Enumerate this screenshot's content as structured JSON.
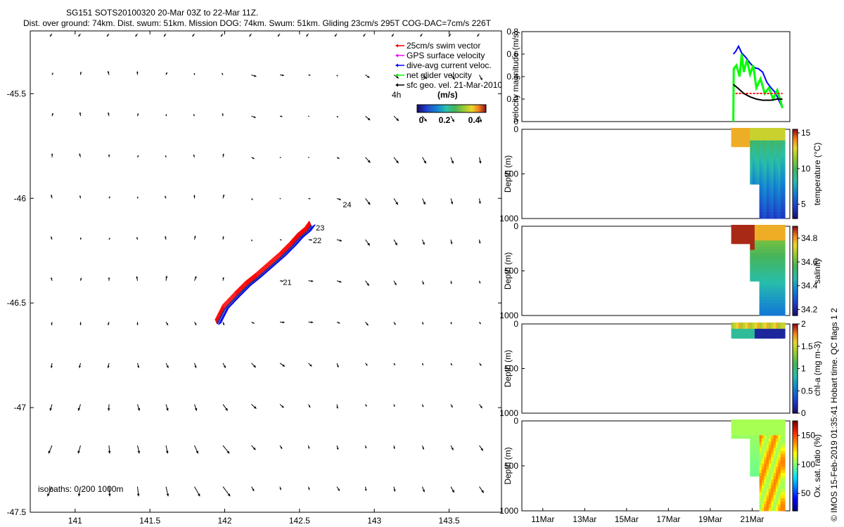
{
  "header": {
    "title": "SG151 SOTS20100320 20-Mar 03Z to 22-Mar 11Z.",
    "subtitle": "Dist. over ground: 74km. Dist. swum: 51km. Mission DOG: 74km. Swum: 51km. Gliding 23cm/s 295T COG-DAC=7cm/s 226T"
  },
  "side_text": "© IMOS 15-Feb-2019 01:35:41 Hobart time. QC flags 1  2",
  "colors": {
    "swim_vector": "#ff0000",
    "gps_surface_velocity": "#ff00ff",
    "dive_avg_current": "#0000ff",
    "net_glider_velocity": "#00ff00",
    "sfc_geo_vel": "#000000"
  },
  "chart_data": [
    {
      "type": "scatter",
      "name": "map",
      "legend": {
        "position": "top-right",
        "items": [
          "25cm/s swim vector",
          "GPS surface velocity",
          "dive-avg current veloc.",
          "net glider velocity",
          "sfc geo. vel. 21-Mar-2010"
        ],
        "interval_label": "4h",
        "colorbar_label": "(m/s)",
        "colorbar_ticks": [
          "0",
          "0.2",
          "0.4"
        ]
      },
      "xlim": [
        140.7,
        143.85
      ],
      "ylim": [
        -47.5,
        -45.2
      ],
      "xticks": [
        "141",
        "141.5",
        "142",
        "142.5",
        "143",
        "143.5"
      ],
      "yticks": [
        "-45.5",
        "-46",
        "-46.5",
        "-47",
        "-47.5"
      ],
      "isobaths_label": "isobaths: 0   200  1000m",
      "track": {
        "lon": [
          141.95,
          142.0,
          142.08,
          142.15,
          142.22,
          142.3,
          142.38,
          142.45,
          142.5,
          142.55,
          142.58
        ],
        "lat": [
          -46.6,
          -46.53,
          -46.47,
          -46.42,
          -46.38,
          -46.33,
          -46.28,
          -46.23,
          -46.19,
          -46.16,
          -46.13
        ]
      },
      "day_labels": [
        {
          "text": "21",
          "lon": 142.38,
          "lat": -46.4
        },
        {
          "text": "22",
          "lon": 142.58,
          "lat": -46.2
        },
        {
          "text": "23",
          "lon": 142.6,
          "lat": -46.14
        },
        {
          "text": "24",
          "lon": 142.78,
          "lat": -46.03
        }
      ]
    },
    {
      "type": "line",
      "name": "velocity",
      "ylabel": "velocity magnitude (m/s)",
      "ylim": [
        0,
        0.8
      ],
      "yticks": [
        "0",
        "0.2",
        "0.4",
        "0.6",
        "0.8"
      ],
      "series": [
        {
          "color": "#0000ff",
          "t": [
            20.1,
            20.2,
            20.35,
            20.5,
            20.7,
            20.9,
            21.1,
            21.3,
            21.5,
            21.7,
            21.9,
            22.1,
            22.3,
            22.45
          ],
          "v": [
            0.6,
            0.62,
            0.67,
            0.61,
            0.57,
            0.52,
            0.48,
            0.47,
            0.44,
            0.35,
            0.3,
            0.26,
            0.18,
            0.12
          ]
        },
        {
          "color": "#00ff00",
          "t": [
            20.1,
            20.12,
            20.25,
            20.4,
            20.5,
            20.6,
            20.75,
            20.9,
            21.05,
            21.2,
            21.4,
            21.6,
            21.8,
            22.0,
            22.2,
            22.45
          ],
          "v": [
            0.0,
            0.47,
            0.5,
            0.4,
            0.6,
            0.44,
            0.55,
            0.42,
            0.5,
            0.3,
            0.38,
            0.25,
            0.3,
            0.2,
            0.28,
            0.12
          ]
        },
        {
          "color": "#ff0000",
          "t": [
            20.2,
            22.45
          ],
          "v": [
            0.25,
            0.25
          ]
        },
        {
          "color": "#000000",
          "t": [
            20.1,
            20.3,
            20.6,
            20.9,
            21.2,
            21.5,
            21.9,
            22.2,
            22.45
          ],
          "v": [
            0.33,
            0.3,
            0.25,
            0.22,
            0.2,
            0.19,
            0.19,
            0.2,
            0.2
          ]
        }
      ]
    },
    {
      "type": "heatmap",
      "name": "temperature",
      "ylabel": "Depth (m)",
      "cblabel": "temperature (°C)",
      "ylim": [
        0,
        1000
      ],
      "yticks": [
        "0",
        "500",
        "1000"
      ],
      "cbticks": [
        "5",
        "10",
        "15"
      ],
      "clim": [
        3,
        15.5
      ]
    },
    {
      "type": "heatmap",
      "name": "salinity",
      "ylabel": "Depth (m)",
      "cblabel": "salinity",
      "ylim": [
        0,
        1000
      ],
      "yticks": [
        "0",
        "500",
        "1000"
      ],
      "cbticks": [
        "34.2",
        "34.4",
        "34.6",
        "34.8"
      ],
      "clim": [
        34.15,
        34.9
      ]
    },
    {
      "type": "heatmap",
      "name": "chla",
      "ylabel": "Depth (m)",
      "cblabel": "chl-a (mg m-3)",
      "ylim": [
        0,
        1000
      ],
      "yticks": [
        "0",
        "500",
        "1000"
      ],
      "cbticks": [
        "0",
        "0.5",
        "1",
        "1.5",
        "2"
      ],
      "clim": [
        0,
        2
      ]
    },
    {
      "type": "heatmap",
      "name": "oxygen",
      "ylabel": "Depth (m)",
      "cblabel": "Ox. sat. ratio (%)",
      "ylim": [
        0,
        1000
      ],
      "yticks": [
        "0",
        "500",
        "1000"
      ],
      "cbticks": [
        "50",
        "100",
        "150"
      ],
      "clim": [
        20,
        175
      ]
    },
    {
      "type": "time_axis",
      "name": "time",
      "xlim": [
        10,
        22.8
      ],
      "xticks": [
        "11Mar",
        "13Mar",
        "15Mar",
        "17Mar",
        "19Mar",
        "21Mar"
      ]
    }
  ]
}
